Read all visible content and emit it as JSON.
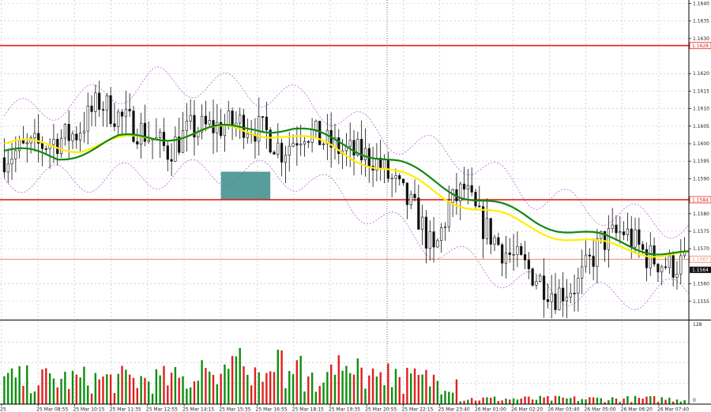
{
  "chart_data": {
    "type": "candlestick",
    "title": "",
    "price_axis": {
      "ylim": [
        1.155,
        1.1641
      ],
      "ticks": [
        1.164,
        1.1635,
        1.163,
        1.162,
        1.1615,
        1.161,
        1.1605,
        1.16,
        1.1595,
        1.159,
        1.158,
        1.1575,
        1.157,
        1.156,
        1.1555
      ],
      "tick_labels": [
        "1.1640",
        "1.1635",
        "1.1630",
        "1.1620",
        "1.1615",
        "1.1610",
        "1.1605",
        "1.1600",
        "1.1595",
        "1.1590",
        "1.1580",
        "1.1575",
        "1.1570",
        "1.1560",
        "1.1555"
      ]
    },
    "volume_axis": {
      "ylim": [
        0,
        128
      ],
      "tick_labels": [
        "128",
        "0"
      ]
    },
    "time_labels": [
      "25",
      "25 Mar 08:55",
      "25 Mar 10:15",
      "25 Mar 11:35",
      "25 Mar 12:55",
      "25 Mar 14:15",
      "25 Mar 15:35",
      "25 Mar 16:55",
      "25 Mar 18:15",
      "25 Mar 19:35",
      "25 Mar 20:55",
      "25 Mar 22:15",
      "25 Mar 23:40",
      "26 Mar 01:00",
      "26 Mar 02:20",
      "26 Mar 03:40",
      "26 Mar 05:00",
      "26 Mar 06:20",
      "26 Mar 07:40"
    ],
    "levels": [
      {
        "value": 1.1628,
        "label": "1.1628",
        "color": "#e0201c"
      },
      {
        "value": 1.1584,
        "label": "1.1584",
        "color": "#e0201c"
      },
      {
        "value": 1.1567,
        "label": "1.1567",
        "color": "#ef8a6a"
      }
    ],
    "current_price": {
      "value": 1.1564,
      "label": "1.1564"
    },
    "grid": true,
    "n_bars": 180,
    "close_waypoints": [
      [
        0,
        1.1596
      ],
      [
        5,
        1.1598
      ],
      [
        12,
        1.16
      ],
      [
        20,
        1.1603
      ],
      [
        26,
        1.1612
      ],
      [
        32,
        1.1607
      ],
      [
        38,
        1.1603
      ],
      [
        44,
        1.1598
      ],
      [
        50,
        1.1604
      ],
      [
        58,
        1.1605
      ],
      [
        64,
        1.1606
      ],
      [
        70,
        1.1603
      ],
      [
        74,
        1.1598
      ],
      [
        80,
        1.1604
      ],
      [
        86,
        1.16
      ],
      [
        90,
        1.1598
      ],
      [
        98,
        1.1596
      ],
      [
        104,
        1.1588
      ],
      [
        110,
        1.1579
      ],
      [
        114,
        1.1568
      ],
      [
        118,
        1.1582
      ],
      [
        122,
        1.1587
      ],
      [
        126,
        1.1578
      ],
      [
        132,
        1.157
      ],
      [
        140,
        1.1563
      ],
      [
        146,
        1.1557
      ],
      [
        152,
        1.156
      ],
      [
        158,
        1.1572
      ],
      [
        164,
        1.1575
      ],
      [
        170,
        1.1568
      ],
      [
        176,
        1.1565
      ],
      [
        180,
        1.1566
      ]
    ],
    "ma_fast_waypoints": [
      [
        0,
        1.1598
      ],
      [
        14,
        1.1596
      ],
      [
        30,
        1.1601
      ],
      [
        50,
        1.1603
      ],
      [
        66,
        1.1605
      ],
      [
        76,
        1.1604
      ],
      [
        90,
        1.16
      ],
      [
        104,
        1.1594
      ],
      [
        120,
        1.1586
      ],
      [
        140,
        1.1578
      ],
      [
        160,
        1.1572
      ],
      [
        180,
        1.1568
      ]
    ],
    "ma_slow_waypoints": [
      [
        0,
        1.16
      ],
      [
        20,
        1.1599
      ],
      [
        40,
        1.1602
      ],
      [
        60,
        1.1604
      ],
      [
        72,
        1.1603
      ],
      [
        86,
        1.1599
      ],
      [
        100,
        1.1593
      ],
      [
        116,
        1.1585
      ],
      [
        136,
        1.1577
      ],
      [
        156,
        1.1571
      ],
      [
        180,
        1.1568
      ]
    ],
    "band_waypoints_up": [
      [
        0,
        1.1608
      ],
      [
        20,
        1.1612
      ],
      [
        40,
        1.1618
      ],
      [
        60,
        1.1616
      ],
      [
        80,
        1.1612
      ],
      [
        100,
        1.1602
      ],
      [
        120,
        1.1596
      ],
      [
        140,
        1.1585
      ],
      [
        160,
        1.158
      ],
      [
        180,
        1.1576
      ]
    ],
    "band_waypoints_dn": [
      [
        0,
        1.159
      ],
      [
        20,
        1.159
      ],
      [
        40,
        1.1591
      ],
      [
        60,
        1.1592
      ],
      [
        80,
        1.159
      ],
      [
        100,
        1.1578
      ],
      [
        120,
        1.1567
      ],
      [
        140,
        1.1559
      ],
      [
        160,
        1.1556
      ],
      [
        180,
        1.1558
      ]
    ],
    "highlight_zone": {
      "x_bar_range": [
        57,
        70
      ],
      "y_range": [
        1.1584,
        1.1592
      ],
      "color": "#3a8c8a"
    }
  },
  "colors": {
    "bull": "#0e8f0e",
    "bear": "#e02020",
    "candle": "#111111",
    "ma_fast": "#118811",
    "ma_slow": "#ffee00",
    "band": "#b14fd1",
    "grid": "#c7c7c7",
    "badge_text_dark": "#ffffff",
    "badge_dark": "#111111"
  }
}
